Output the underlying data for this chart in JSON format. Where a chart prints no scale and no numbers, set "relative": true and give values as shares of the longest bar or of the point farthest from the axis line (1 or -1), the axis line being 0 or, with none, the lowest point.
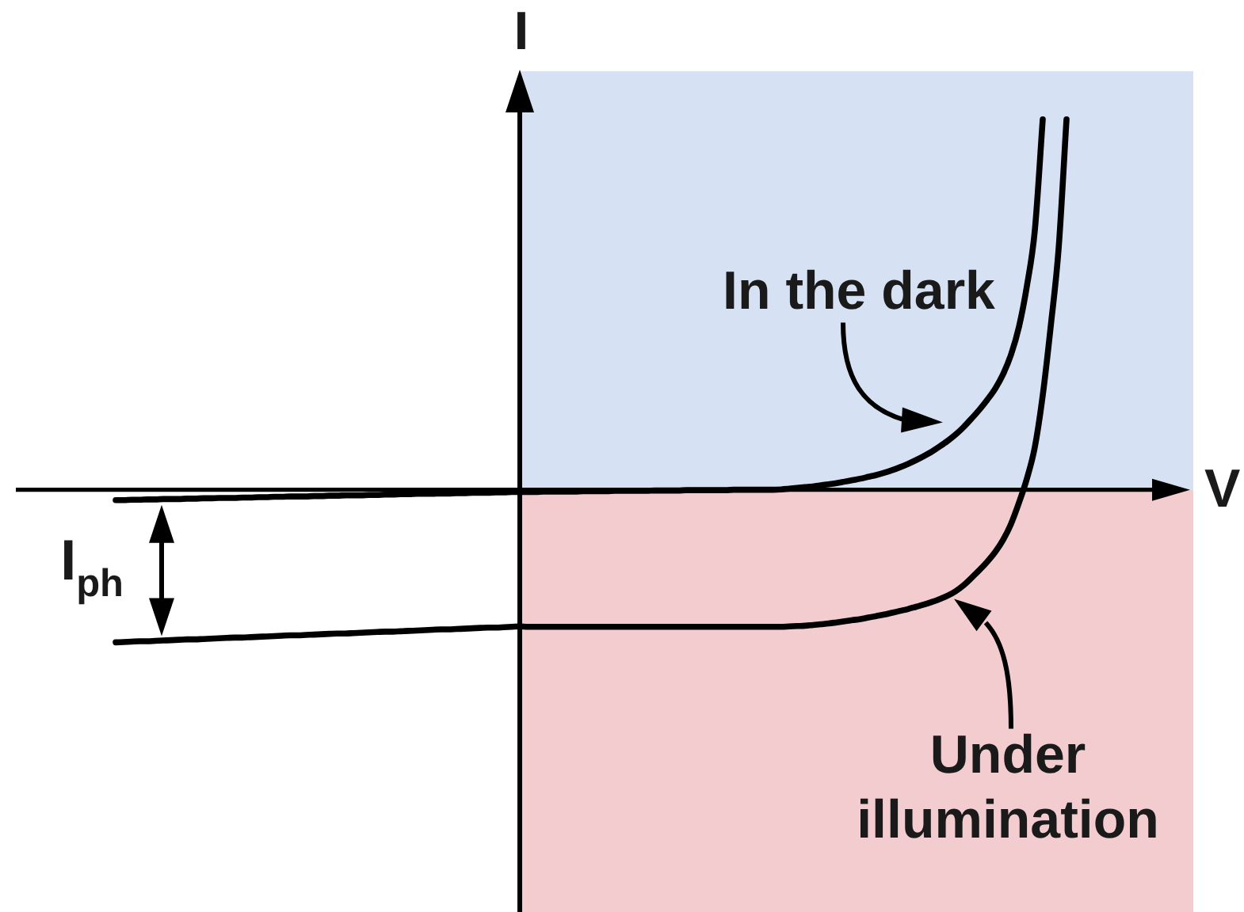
{
  "chart_data": {
    "type": "line",
    "xlabel": "V",
    "ylabel": "I",
    "relative": true,
    "marker": "none",
    "line_style": "solid",
    "categories": [
      null,
      null,
      null,
      null,
      null,
      null,
      null,
      null,
      null,
      null,
      null,
      null,
      null,
      null,
      null,
      null,
      null,
      null,
      null,
      null,
      null,
      null,
      null,
      null,
      null,
      null,
      null,
      null,
      null,
      null,
      null,
      null,
      null,
      null,
      null,
      null,
      null,
      null,
      null,
      null,
      null,
      null,
      null,
      null,
      null,
      null,
      null,
      null,
      null,
      null,
      null,
      null,
      null,
      null,
      null,
      null,
      null,
      null,
      null,
      null,
      null,
      null,
      null,
      null,
      null,
      null,
      null,
      null,
      null,
      null,
      null,
      null,
      null,
      null,
      null,
      null,
      null,
      null,
      null,
      null,
      null,
      null,
      null,
      null,
      null,
      null,
      null,
      null,
      null,
      null,
      null,
      null,
      null,
      null,
      null,
      null,
      null,
      null,
      null,
      null,
      null,
      null,
      null,
      null,
      null,
      null,
      null,
      null,
      null,
      null,
      null,
      null,
      null,
      null,
      null,
      null,
      null,
      null,
      null,
      null,
      null,
      null,
      null,
      null,
      null,
      null,
      null,
      null,
      null,
      null,
      null,
      null,
      null,
      null,
      null,
      null,
      null,
      null,
      null,
      null,
      null,
      null,
      null,
      null,
      null,
      null,
      null,
      null,
      null,
      null
    ],
    "series": [
      {
        "name": "In the dark",
        "color": "#000000",
        "values": [
          null,
          null,
          null,
          null,
          null,
          null,
          null,
          null,
          null,
          null,
          null,
          null,
          null,
          -0.028,
          -0.028,
          -0.027,
          -0.027,
          -0.026,
          -0.026,
          -0.025,
          -0.025,
          -0.025,
          -0.024,
          -0.024,
          -0.023,
          -0.023,
          -0.022,
          -0.022,
          -0.022,
          -0.021,
          -0.021,
          -0.02,
          -0.02,
          -0.019,
          -0.019,
          -0.018,
          -0.018,
          -0.018,
          -0.017,
          -0.017,
          -0.016,
          -0.016,
          -0.015,
          -0.015,
          -0.015,
          -0.014,
          -0.014,
          -0.013,
          -0.013,
          -0.012,
          -0.012,
          -0.011,
          -0.011,
          -0.011,
          -0.01,
          -0.01,
          -0.009,
          -0.009,
          -0.008,
          -0.008,
          -0.008,
          -0.007,
          -0.007,
          -0.006,
          -0.006,
          -0.006,
          -0.006,
          -0.005,
          -0.005,
          -0.005,
          -0.005,
          -0.005,
          -0.004,
          -0.004,
          -0.004,
          -0.004,
          -0.003,
          -0.003,
          -0.003,
          -0.003,
          -0.003,
          -0.002,
          -0.002,
          -0.002,
          -0.002,
          -0.001,
          -0.001,
          -0.001,
          -0.001,
          -0.001,
          -0.001,
          0,
          0,
          0,
          0,
          0,
          0,
          0.001,
          0.003,
          0.005,
          0.007,
          0.009,
          0.012,
          0.015,
          0.018,
          0.022,
          0.026,
          0.03,
          0.035,
          0.04,
          0.046,
          0.053,
          0.061,
          0.07,
          0.08,
          0.091,
          0.103,
          0.117,
          0.132,
          0.149,
          0.169,
          0.192,
          0.216,
          0.243,
          0.273,
          0.312,
          0.365,
          0.44,
          0.55,
          0.7,
          1,
          null,
          null,
          null,
          null,
          null,
          null,
          null,
          null,
          null,
          null,
          null,
          null,
          null,
          null,
          null,
          null,
          null,
          null,
          null
        ]
      },
      {
        "name": "Under illumination",
        "color": "#000000",
        "values": [
          null,
          null,
          null,
          null,
          null,
          null,
          null,
          null,
          null,
          null,
          null,
          null,
          null,
          -0.412,
          -0.411,
          -0.41,
          -0.409,
          -0.409,
          -0.408,
          -0.407,
          -0.406,
          -0.405,
          -0.404,
          -0.404,
          -0.403,
          -0.402,
          -0.401,
          -0.4,
          -0.399,
          -0.399,
          -0.398,
          -0.397,
          -0.396,
          -0.395,
          -0.394,
          -0.393,
          -0.393,
          -0.392,
          -0.391,
          -0.39,
          -0.389,
          -0.388,
          -0.388,
          -0.387,
          -0.386,
          -0.385,
          -0.384,
          -0.383,
          -0.383,
          -0.382,
          -0.381,
          -0.38,
          -0.379,
          -0.378,
          -0.377,
          -0.377,
          -0.376,
          -0.375,
          -0.374,
          -0.373,
          -0.372,
          -0.372,
          -0.371,
          -0.37,
          -0.369,
          -0.37,
          -0.37,
          -0.37,
          -0.37,
          -0.37,
          -0.37,
          -0.37,
          -0.37,
          -0.37,
          -0.37,
          -0.37,
          -0.37,
          -0.37,
          -0.37,
          -0.37,
          -0.37,
          -0.37,
          -0.37,
          -0.37,
          -0.37,
          -0.37,
          -0.37,
          -0.37,
          -0.37,
          -0.37,
          -0.37,
          -0.37,
          -0.37,
          -0.37,
          -0.37,
          -0.37,
          -0.37,
          -0.37,
          -0.369,
          -0.368,
          -0.367,
          -0.365,
          -0.363,
          -0.361,
          -0.358,
          -0.355,
          -0.352,
          -0.349,
          -0.345,
          -0.341,
          -0.337,
          -0.332,
          -0.327,
          -0.322,
          -0.316,
          -0.31,
          -0.303,
          -0.295,
          -0.286,
          -0.274,
          -0.258,
          -0.238,
          -0.217,
          -0.194,
          -0.168,
          -0.135,
          -0.092,
          -0.035,
          0.03,
          0.115,
          0.255,
          0.44,
          0.65,
          1,
          null,
          null,
          null,
          null,
          null,
          null,
          null,
          null,
          null,
          null,
          null,
          null,
          null,
          null,
          null,
          null
        ]
      }
    ],
    "bands": [
      {
        "axis": "y",
        "from": 0,
        "to": 1.13,
        "color": "#d6e2f3"
      },
      {
        "axis": "y",
        "from": -1.14,
        "to": 0,
        "color": "#f2cccf"
      }
    ],
    "annotations": [
      "I$_{ph}$"
    ]
  }
}
